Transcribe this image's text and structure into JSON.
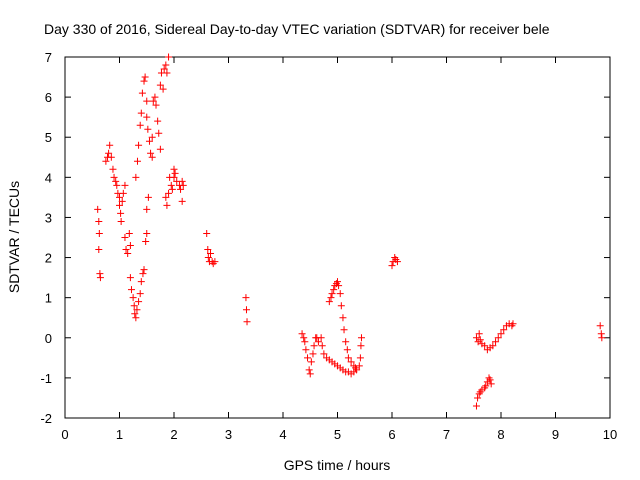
{
  "chart_data": {
    "type": "scatter",
    "title": "Day 330 of 2016, Sidereal Day-to-day VTEC variation (SDTVAR) for receiver bele",
    "xlabel": "GPS time / hours",
    "ylabel": "SDTVAR / TECUs",
    "xlim": [
      0,
      10
    ],
    "ylim": [
      -2,
      7
    ],
    "xticks": [
      "0",
      "1",
      "2",
      "3",
      "4",
      "5",
      "6",
      "7",
      "8",
      "9",
      "10"
    ],
    "yticks": [
      "-2",
      "-1",
      "0",
      "1",
      "2",
      "3",
      "4",
      "5",
      "6",
      "7"
    ],
    "marker": "+",
    "color": "#ff0000",
    "series": [
      {
        "name": "SDTVAR",
        "points": [
          [
            0.6,
            3.2
          ],
          [
            0.62,
            2.9
          ],
          [
            0.63,
            2.6
          ],
          [
            0.62,
            2.2
          ],
          [
            0.64,
            1.6
          ],
          [
            0.65,
            1.5
          ],
          [
            0.75,
            4.4
          ],
          [
            0.78,
            4.5
          ],
          [
            0.8,
            4.6
          ],
          [
            0.82,
            4.8
          ],
          [
            0.85,
            4.5
          ],
          [
            0.88,
            4.2
          ],
          [
            0.9,
            4.0
          ],
          [
            0.93,
            3.9
          ],
          [
            0.95,
            3.8
          ],
          [
            0.97,
            3.6
          ],
          [
            1.0,
            3.5
          ],
          [
            1.0,
            3.3
          ],
          [
            1.02,
            3.1
          ],
          [
            1.03,
            2.9
          ],
          [
            1.05,
            3.4
          ],
          [
            1.07,
            3.6
          ],
          [
            1.1,
            3.8
          ],
          [
            1.1,
            2.5
          ],
          [
            1.12,
            2.2
          ],
          [
            1.15,
            2.1
          ],
          [
            1.18,
            2.6
          ],
          [
            1.2,
            2.3
          ],
          [
            1.2,
            1.5
          ],
          [
            1.22,
            1.2
          ],
          [
            1.25,
            1.0
          ],
          [
            1.27,
            0.8
          ],
          [
            1.28,
            0.6
          ],
          [
            1.3,
            0.5
          ],
          [
            1.32,
            0.7
          ],
          [
            1.35,
            0.9
          ],
          [
            1.38,
            1.1
          ],
          [
            1.4,
            1.4
          ],
          [
            1.43,
            1.6
          ],
          [
            1.45,
            1.7
          ],
          [
            1.3,
            4.0
          ],
          [
            1.33,
            4.4
          ],
          [
            1.35,
            4.8
          ],
          [
            1.38,
            5.3
          ],
          [
            1.4,
            5.6
          ],
          [
            1.42,
            6.1
          ],
          [
            1.45,
            6.4
          ],
          [
            1.47,
            6.5
          ],
          [
            1.5,
            5.9
          ],
          [
            1.5,
            5.5
          ],
          [
            1.52,
            5.2
          ],
          [
            1.55,
            4.9
          ],
          [
            1.57,
            4.6
          ],
          [
            1.6,
            4.5
          ],
          [
            1.6,
            5.0
          ],
          [
            1.62,
            5.9
          ],
          [
            1.65,
            6.0
          ],
          [
            1.67,
            5.8
          ],
          [
            1.7,
            5.4
          ],
          [
            1.72,
            5.1
          ],
          [
            1.75,
            4.7
          ],
          [
            1.5,
            2.6
          ],
          [
            1.48,
            2.4
          ],
          [
            1.5,
            3.2
          ],
          [
            1.53,
            3.5
          ],
          [
            1.75,
            6.3
          ],
          [
            1.77,
            6.6
          ],
          [
            1.8,
            6.2
          ],
          [
            1.82,
            6.7
          ],
          [
            1.85,
            6.8
          ],
          [
            1.87,
            6.6
          ],
          [
            1.9,
            7.0
          ],
          [
            1.85,
            3.5
          ],
          [
            1.87,
            3.3
          ],
          [
            1.9,
            3.6
          ],
          [
            1.92,
            4.0
          ],
          [
            1.95,
            3.8
          ],
          [
            1.97,
            3.7
          ],
          [
            2.0,
            4.0
          ],
          [
            2.0,
            4.2
          ],
          [
            2.02,
            4.1
          ],
          [
            2.05,
            3.9
          ],
          [
            2.1,
            3.8
          ],
          [
            2.12,
            3.7
          ],
          [
            2.15,
            3.9
          ],
          [
            2.17,
            3.8
          ],
          [
            2.15,
            3.4
          ],
          [
            2.6,
            2.6
          ],
          [
            2.62,
            2.2
          ],
          [
            2.63,
            2.0
          ],
          [
            2.65,
            1.9
          ],
          [
            2.67,
            2.1
          ],
          [
            2.7,
            1.9
          ],
          [
            2.72,
            1.85
          ],
          [
            2.75,
            1.9
          ],
          [
            3.32,
            1.0
          ],
          [
            3.33,
            0.7
          ],
          [
            3.34,
            0.4
          ],
          [
            4.35,
            0.1
          ],
          [
            4.38,
            0.0
          ],
          [
            4.4,
            -0.1
          ],
          [
            4.42,
            -0.3
          ],
          [
            4.45,
            -0.5
          ],
          [
            4.48,
            -0.8
          ],
          [
            4.5,
            -0.9
          ],
          [
            4.52,
            -0.6
          ],
          [
            4.55,
            -0.4
          ],
          [
            4.57,
            -0.2
          ],
          [
            4.6,
            0.0
          ],
          [
            4.62,
            0.0
          ],
          [
            4.65,
            -0.1
          ],
          [
            4.7,
            0.0
          ],
          [
            4.72,
            -0.2
          ],
          [
            4.75,
            -0.4
          ],
          [
            4.8,
            -0.5
          ],
          [
            4.85,
            -0.55
          ],
          [
            4.9,
            -0.6
          ],
          [
            4.95,
            -0.65
          ],
          [
            5.0,
            -0.7
          ],
          [
            5.05,
            -0.75
          ],
          [
            5.1,
            -0.8
          ],
          [
            5.15,
            -0.85
          ],
          [
            5.2,
            -0.85
          ],
          [
            5.25,
            -0.9
          ],
          [
            5.3,
            -0.85
          ],
          [
            5.35,
            -0.8
          ],
          [
            5.4,
            -0.7
          ],
          [
            5.42,
            -0.5
          ],
          [
            5.43,
            -0.2
          ],
          [
            5.44,
            0.0
          ],
          [
            4.85,
            0.9
          ],
          [
            4.88,
            1.0
          ],
          [
            4.9,
            1.1
          ],
          [
            4.93,
            1.2
          ],
          [
            4.95,
            1.3
          ],
          [
            4.98,
            1.35
          ],
          [
            5.0,
            1.4
          ],
          [
            5.02,
            1.3
          ],
          [
            5.05,
            1.1
          ],
          [
            5.07,
            0.8
          ],
          [
            5.1,
            0.5
          ],
          [
            5.12,
            0.2
          ],
          [
            5.15,
            -0.1
          ],
          [
            5.18,
            -0.3
          ],
          [
            5.2,
            -0.5
          ],
          [
            5.25,
            -0.6
          ],
          [
            5.3,
            -0.7
          ],
          [
            5.33,
            -0.75
          ],
          [
            6.0,
            1.8
          ],
          [
            6.02,
            1.9
          ],
          [
            6.05,
            2.0
          ],
          [
            6.07,
            1.95
          ],
          [
            6.1,
            1.9
          ],
          [
            7.55,
            -1.7
          ],
          [
            7.57,
            -1.5
          ],
          [
            7.6,
            -1.4
          ],
          [
            7.62,
            -1.35
          ],
          [
            7.65,
            -1.3
          ],
          [
            7.7,
            -1.25
          ],
          [
            7.72,
            -1.2
          ],
          [
            7.75,
            -1.1
          ],
          [
            7.78,
            -1.0
          ],
          [
            7.8,
            -1.05
          ],
          [
            7.82,
            -1.15
          ],
          [
            7.55,
            0.0
          ],
          [
            7.58,
            -0.1
          ],
          [
            7.6,
            0.1
          ],
          [
            7.62,
            -0.05
          ],
          [
            7.65,
            -0.15
          ],
          [
            7.7,
            -0.2
          ],
          [
            7.75,
            -0.3
          ],
          [
            7.8,
            -0.25
          ],
          [
            7.85,
            -0.2
          ],
          [
            7.9,
            -0.1
          ],
          [
            7.95,
            0.0
          ],
          [
            8.0,
            0.1
          ],
          [
            8.05,
            0.2
          ],
          [
            8.1,
            0.3
          ],
          [
            8.15,
            0.35
          ],
          [
            8.2,
            0.3
          ],
          [
            8.22,
            0.35
          ],
          [
            9.82,
            0.3
          ],
          [
            9.84,
            0.1
          ],
          [
            9.85,
            0.0
          ]
        ]
      }
    ]
  }
}
